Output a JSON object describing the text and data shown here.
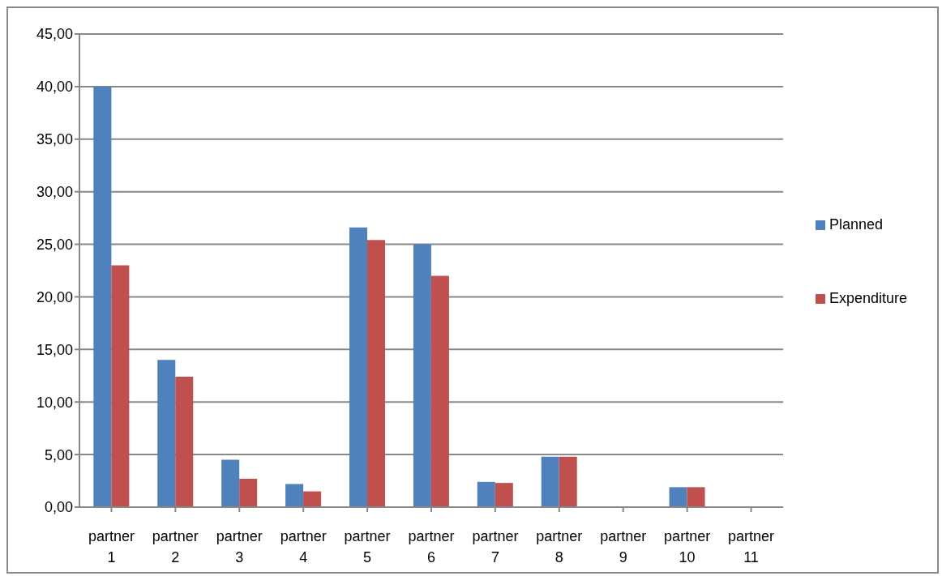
{
  "chart_data": {
    "type": "bar",
    "categories": [
      "partner 1",
      "partner 2",
      "partner 3",
      "partner 4",
      "partner 5",
      "partner 6",
      "partner 7",
      "partner 8",
      "partner 9",
      "partner 10",
      "partner 11"
    ],
    "series": [
      {
        "name": "Planned",
        "color": "#4f81bd",
        "values": [
          40.0,
          14.0,
          4.5,
          2.2,
          26.6,
          25.0,
          2.4,
          4.8,
          0,
          1.9,
          0
        ]
      },
      {
        "name": "Expenditure",
        "color": "#c0504d",
        "values": [
          23.0,
          12.4,
          2.7,
          1.5,
          25.4,
          22.0,
          2.3,
          4.8,
          0,
          1.9,
          0
        ]
      }
    ],
    "ylim": [
      0,
      45
    ],
    "yticks": [
      {
        "value": 0,
        "label": "0,00"
      },
      {
        "value": 5,
        "label": "5,00"
      },
      {
        "value": 10,
        "label": "10,00"
      },
      {
        "value": 15,
        "label": "15,00"
      },
      {
        "value": 20,
        "label": "20,00"
      },
      {
        "value": 25,
        "label": "25,00"
      },
      {
        "value": 30,
        "label": "30,00"
      },
      {
        "value": 35,
        "label": "35,00"
      },
      {
        "value": 40,
        "label": "40,00"
      },
      {
        "value": 45,
        "label": "45,00"
      }
    ],
    "grid": "y",
    "legend": "right"
  }
}
